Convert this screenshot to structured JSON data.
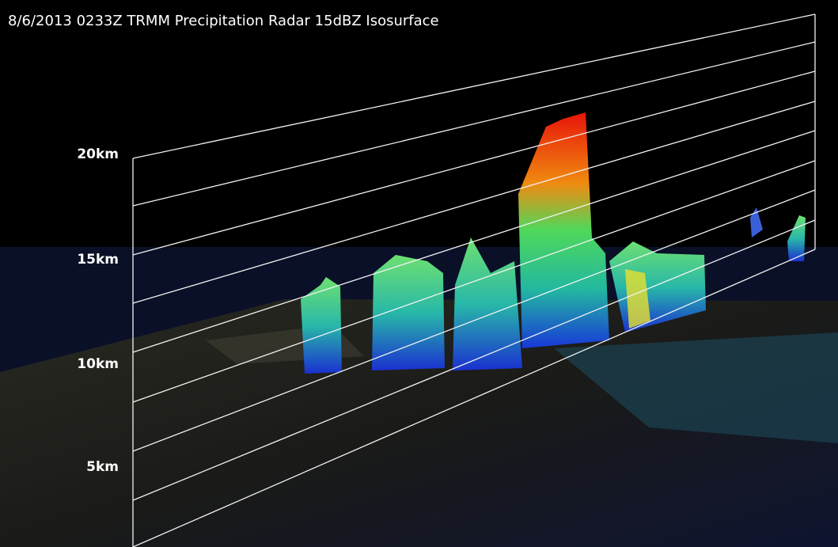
{
  "title": "8/6/2013 0233Z TRMM Precipitation Radar 15dBZ Isosurface",
  "altitude_labels": [
    "20km",
    "15km",
    "10km",
    "5km"
  ]
}
